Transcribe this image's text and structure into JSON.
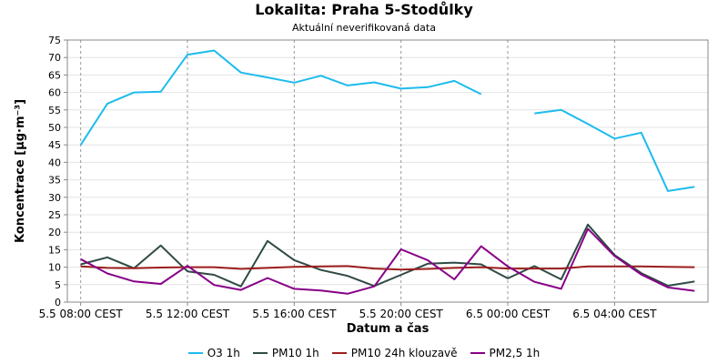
{
  "chart_data": {
    "type": "line",
    "title": "Lokalita: Praha 5-Stodůlky",
    "subtitle": "Aktuální neverifikovaná data",
    "xlabel": "Datum a čas",
    "ylabel": "Koncentrace [µg·m⁻³]",
    "ylim": [
      0,
      75
    ],
    "yticks": [
      0,
      5,
      10,
      15,
      20,
      25,
      30,
      35,
      40,
      45,
      50,
      55,
      60,
      65,
      70,
      75
    ],
    "x_hours_range": [
      7.5,
      31.5
    ],
    "x_ticks": [
      {
        "hour": 8,
        "label": "5.5 08:00 CEST"
      },
      {
        "hour": 12,
        "label": "5.5 12:00 CEST"
      },
      {
        "hour": 16,
        "label": "5.5 16:00 CEST"
      },
      {
        "hour": 20,
        "label": "5.5 20:00 CEST"
      },
      {
        "hour": 24,
        "label": "6.5 00:00 CEST"
      },
      {
        "hour": 28,
        "label": "6.5 04:00 CEST"
      }
    ],
    "x": [
      8,
      9,
      10,
      11,
      12,
      13,
      14,
      15,
      16,
      17,
      18,
      19,
      20,
      21,
      22,
      23,
      24,
      25,
      26,
      27,
      28,
      29,
      30,
      31
    ],
    "grid": true,
    "legend": "bottom",
    "series": [
      {
        "name": "O3 1h",
        "color": "#1ebbee",
        "values": [
          45,
          56.8,
          60,
          60.2,
          70.8,
          72,
          65.7,
          64.3,
          62.8,
          64.8,
          62,
          62.9,
          61.1,
          61.5,
          63.3,
          59.5,
          null,
          54,
          55,
          51,
          46.8,
          48.5,
          31.8,
          33
        ]
      },
      {
        "name": "PM10 1h",
        "color": "#2e4a45",
        "values": [
          10.8,
          12.8,
          9.7,
          16.2,
          8.8,
          7.8,
          4.5,
          17.5,
          12,
          9.2,
          7.5,
          4.6,
          7.8,
          11,
          11.3,
          10.8,
          6.8,
          10.3,
          6.5,
          22.2,
          13.5,
          8.3,
          4.7,
          5.9
        ]
      },
      {
        "name": "PM10 24h klouzavě",
        "color": "#9c1d1d",
        "values": [
          10.2,
          9.8,
          9.7,
          9.9,
          10.0,
          10.0,
          9.5,
          9.8,
          10.1,
          10.2,
          10.3,
          9.6,
          9.3,
          9.5,
          9.8,
          10.0,
          9.6,
          9.6,
          9.6,
          10.2,
          10.2,
          10.2,
          10.1,
          10.0
        ]
      },
      {
        "name": "PM2,5 1h",
        "color": "#880088",
        "values": [
          12.3,
          8.2,
          5.9,
          5.2,
          10.4,
          4.9,
          3.5,
          6.9,
          3.8,
          3.3,
          2.4,
          4.5,
          15.1,
          12,
          6.5,
          16,
          10.2,
          5.8,
          3.8,
          21,
          13.2,
          7.9,
          4.2,
          3.2
        ]
      }
    ]
  }
}
